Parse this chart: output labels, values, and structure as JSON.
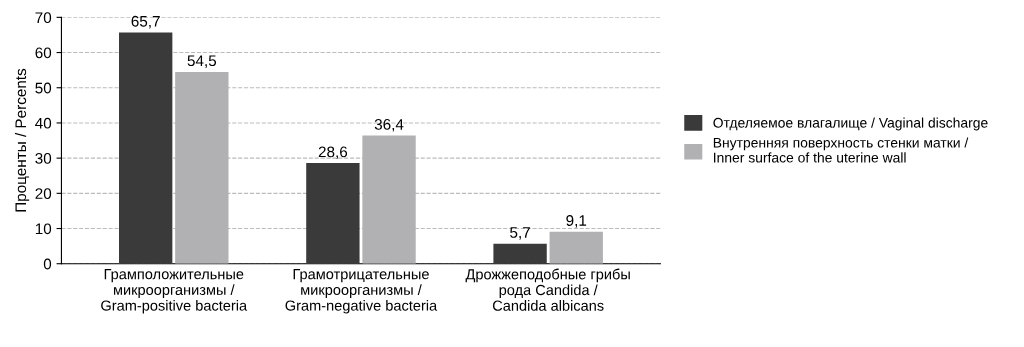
{
  "chart_data": {
    "type": "bar",
    "ylabel": "Проценты / Percents",
    "categories": [
      "Грамположительные\nмикроорганизмы /\nGram-positive bacteria",
      "Грамотрицательные\nмикроорганизмы /\nGram-negative bacteria",
      "Дрожжеподобные грибы\nрода Candida /\nCandida albicans"
    ],
    "series": [
      {
        "name": "Отделяемое влагалище / Vaginal discharge",
        "color": "#3a3a3a",
        "values": [
          65.7,
          28.6,
          5.7
        ],
        "value_labels": [
          "65,7",
          "28,6",
          "5,7"
        ]
      },
      {
        "name": "Внутренняя поверхность стенки матки /\nInner surface of the uterine wall",
        "color": "#b1b1b3",
        "values": [
          54.5,
          36.4,
          9.1
        ],
        "value_labels": [
          "54,5",
          "36,4",
          "9,1"
        ]
      }
    ],
    "ylim": [
      0,
      70
    ],
    "yticks": [
      0,
      10,
      20,
      30,
      40,
      50,
      60,
      70
    ],
    "grid": "y",
    "legend": "right"
  }
}
